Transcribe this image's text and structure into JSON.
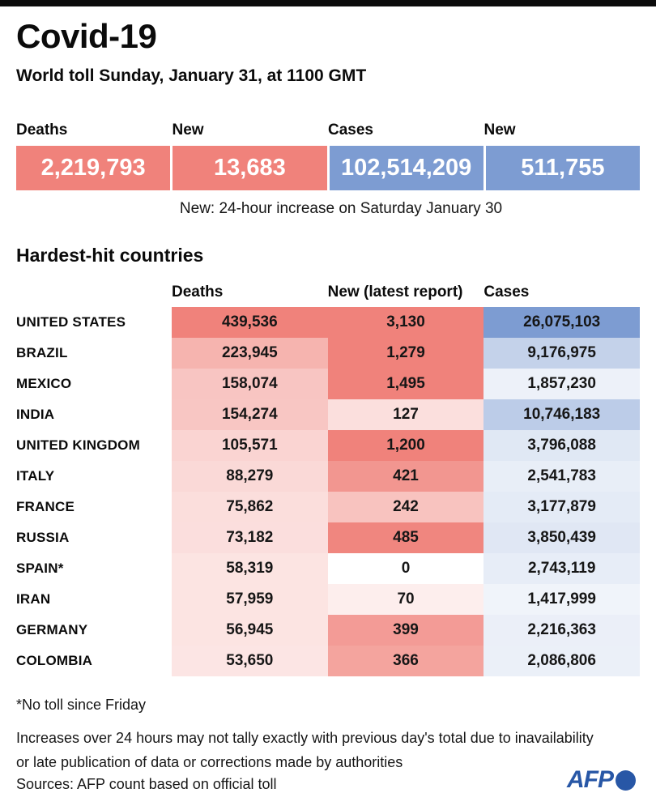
{
  "header": {
    "title": "Covid-19",
    "subtitle": "World toll Sunday, January 31, at 1100 GMT"
  },
  "summary": {
    "boxes": [
      {
        "label": "Deaths",
        "value": "2,219,793",
        "color": "#f0827b"
      },
      {
        "label": "New",
        "value": "13,683",
        "color": "#f0827b"
      },
      {
        "label": "Cases",
        "value": "102,514,209",
        "color": "#7d9cd2"
      },
      {
        "label": "New",
        "value": "511,755",
        "color": "#7d9cd2"
      }
    ],
    "note": "New: 24-hour increase on Saturday January 30"
  },
  "chart_data": {
    "type": "table",
    "title": "Hardest-hit countries",
    "columns": [
      "Deaths",
      "New (latest report)",
      "Cases"
    ],
    "color_scales": {
      "deaths": {
        "base": "#f0827b",
        "max": 439536,
        "exponent": 0.75
      },
      "new": {
        "base": "#f0827b",
        "max": 500,
        "exponent": 1
      },
      "cases": {
        "base": "#7d9cd2",
        "max": 26075103,
        "exponent": 0.75
      }
    },
    "rows": [
      {
        "country": "UNITED STATES",
        "deaths": 439536,
        "new": 3130,
        "cases": 26075103
      },
      {
        "country": "BRAZIL",
        "deaths": 223945,
        "new": 1279,
        "cases": 9176975
      },
      {
        "country": "MEXICO",
        "deaths": 158074,
        "new": 1495,
        "cases": 1857230
      },
      {
        "country": "INDIA",
        "deaths": 154274,
        "new": 127,
        "cases": 10746183
      },
      {
        "country": "UNITED KINGDOM",
        "deaths": 105571,
        "new": 1200,
        "cases": 3796088
      },
      {
        "country": "ITALY",
        "deaths": 88279,
        "new": 421,
        "cases": 2541783
      },
      {
        "country": "FRANCE",
        "deaths": 75862,
        "new": 242,
        "cases": 3177879
      },
      {
        "country": "RUSSIA",
        "deaths": 73182,
        "new": 485,
        "cases": 3850439
      },
      {
        "country": "SPAIN*",
        "deaths": 58319,
        "new": 0,
        "cases": 2743119
      },
      {
        "country": "IRAN",
        "deaths": 57959,
        "new": 70,
        "cases": 1417999
      },
      {
        "country": "GERMANY",
        "deaths": 56945,
        "new": 399,
        "cases": 2216363
      },
      {
        "country": "COLOMBIA",
        "deaths": 53650,
        "new": 366,
        "cases": 2086806
      }
    ]
  },
  "footer": {
    "footnote": "*No toll since Friday",
    "note_line1": "Increases over 24 hours may not tally exactly with previous day's total due to inavailability",
    "note_line2": "or late publication of data or corrections made by authorities",
    "sources": "Sources: AFP count based on official toll"
  },
  "logo": {
    "text": "AFP",
    "color": "#2857a6"
  }
}
